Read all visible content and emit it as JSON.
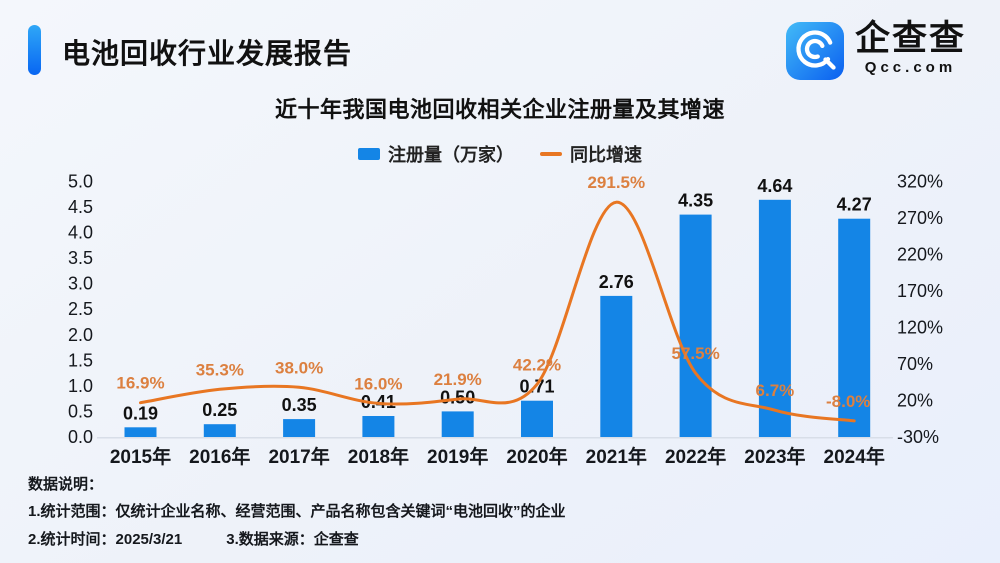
{
  "page": {
    "background": "#eef2f9"
  },
  "header": {
    "title": "电池回收行业发展报告",
    "accent_color_top": "#2FA7F7",
    "accent_color_bottom": "#0866F2"
  },
  "logo": {
    "name": "企查查",
    "domain": "Qcc.com",
    "icon": "qcc-spiral-q-icon",
    "icon_color_top": "#43BBF7",
    "icon_color_bottom": "#0A5FF0"
  },
  "chart_data": {
    "type": "bar",
    "title": "近十年我国电池回收相关企业注册量及其增速",
    "categories": [
      "2015年",
      "2016年",
      "2017年",
      "2018年",
      "2019年",
      "2020年",
      "2021年",
      "2022年",
      "2023年",
      "2024年"
    ],
    "series": [
      {
        "name": "注册量（万家）",
        "type": "bar",
        "axis": "left",
        "color": "#1485E6",
        "values": [
          0.19,
          0.25,
          0.35,
          0.41,
          0.5,
          0.71,
          2.76,
          4.35,
          4.64,
          4.27
        ],
        "labels": [
          "0.19",
          "0.25",
          "0.35",
          "0.41",
          "0.50",
          "0.71",
          "2.76",
          "4.35",
          "4.64",
          "4.27"
        ]
      },
      {
        "name": "同比增速",
        "type": "line",
        "axis": "right",
        "color": "#E87622",
        "label_color": "#DC8040",
        "values": [
          16.9,
          35.3,
          38.0,
          16.0,
          21.9,
          42.2,
          291.5,
          57.5,
          6.7,
          -8.0
        ],
        "labels": [
          "16.9%",
          "35.3%",
          "38.0%",
          "16.0%",
          "21.9%",
          "42.2%",
          "291.5%",
          "57.5%",
          "6.7%",
          "-8.0%"
        ]
      }
    ],
    "left_axis": {
      "min": 0,
      "max": 5,
      "step": 0.5,
      "tick_labels": [
        "0.0",
        "0.5",
        "1.0",
        "1.5",
        "2.0",
        "2.5",
        "3.0",
        "3.5",
        "4.0",
        "4.5",
        "5.0"
      ]
    },
    "right_axis": {
      "min": -30,
      "max": 320,
      "step": 50,
      "tick_labels": [
        "-30%",
        "20%",
        "70%",
        "120%",
        "170%",
        "220%",
        "270%",
        "320%"
      ]
    },
    "grid": false,
    "legend_position": "top",
    "axis_line_color": "#D8DEE8",
    "value_label_color": "#111111"
  },
  "notes": {
    "heading": "数据说明：",
    "line1": "1.统计范围：仅统计企业名称、经营范围、产品名称包含关键词“电池回收”的企业",
    "line2a": "2.统计时间：2025/3/21",
    "line2b": "3.数据来源：企查查"
  }
}
